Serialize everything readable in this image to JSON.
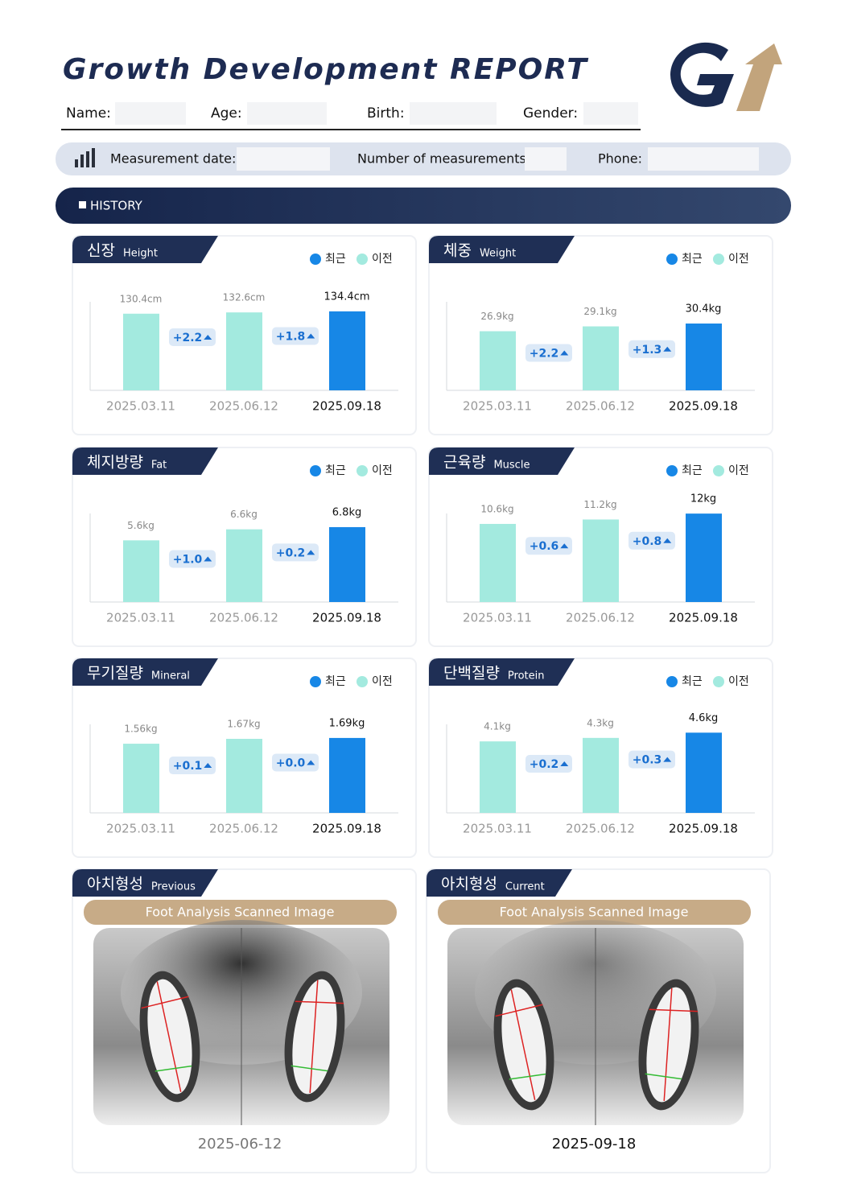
{
  "header": {
    "title": "Growth Development REPORT",
    "fields": [
      "Name:",
      "Age:",
      "Birth:",
      "Gender:"
    ]
  },
  "info_bar": {
    "fields": [
      "Measurement date:",
      "Number of measurements:",
      "Phone:"
    ]
  },
  "section": {
    "title": "HISTORY"
  },
  "chart_data": [
    {
      "type": "bar",
      "title": "신장",
      "subtitle": "Height",
      "categories": [
        "2025.03.11",
        "2025.06.12",
        "2025.09.18"
      ],
      "series": [
        {
          "name": "최근",
          "color": "#1787e6",
          "values": [
            null,
            null,
            134.4
          ],
          "value_labels": [
            null,
            null,
            "134.4cm"
          ]
        },
        {
          "name": "이전",
          "color": "#a3eadf",
          "values": [
            130.4,
            132.6,
            null
          ],
          "value_labels": [
            "130.4cm",
            "132.6cm",
            null
          ]
        }
      ],
      "annotations": [
        "+2.2",
        "+1.8"
      ],
      "ylim": [
        0,
        178
      ]
    },
    {
      "type": "bar",
      "title": "체중",
      "subtitle": "Weight",
      "categories": [
        "2025.03.11",
        "2025.06.12",
        "2025.09.18"
      ],
      "series": [
        {
          "name": "최근",
          "color": "#1787e6",
          "values": [
            null,
            null,
            30.4
          ],
          "value_labels": [
            null,
            null,
            "30.4kg"
          ]
        },
        {
          "name": "이전",
          "color": "#a3eadf",
          "values": [
            26.9,
            29.1,
            null
          ],
          "value_labels": [
            "26.9kg",
            "29.1kg",
            null
          ]
        }
      ],
      "annotations": [
        "+2.2",
        "+1.3"
      ],
      "ylim": [
        0,
        47.6
      ]
    },
    {
      "type": "bar",
      "title": "체지방량",
      "subtitle": "Fat",
      "categories": [
        "2025.03.11",
        "2025.06.12",
        "2025.09.18"
      ],
      "series": [
        {
          "name": "최근",
          "color": "#1787e6",
          "values": [
            null,
            null,
            6.8
          ],
          "value_labels": [
            null,
            null,
            "6.8kg"
          ]
        },
        {
          "name": "이전",
          "color": "#a3eadf",
          "values": [
            5.6,
            6.6,
            null
          ],
          "value_labels": [
            "5.6kg",
            "6.6kg",
            null
          ]
        }
      ],
      "annotations": [
        "+1.0",
        "+0.2"
      ],
      "ylim": [
        0,
        9.5
      ]
    },
    {
      "type": "bar",
      "title": "근육량",
      "subtitle": "Muscle",
      "categories": [
        "2025.03.11",
        "2025.06.12",
        "2025.09.18"
      ],
      "series": [
        {
          "name": "최근",
          "color": "#1787e6",
          "values": [
            null,
            null,
            12
          ],
          "value_labels": [
            null,
            null,
            "12kg"
          ]
        },
        {
          "name": "이전",
          "color": "#a3eadf",
          "values": [
            10.6,
            11.2,
            null
          ],
          "value_labels": [
            "10.6kg",
            "11.2kg",
            null
          ]
        }
      ],
      "annotations": [
        "+0.6",
        "+0.8"
      ],
      "ylim": [
        0,
        14.2
      ]
    },
    {
      "type": "bar",
      "title": "무기질량",
      "subtitle": "Mineral",
      "categories": [
        "2025.03.11",
        "2025.06.12",
        "2025.09.18"
      ],
      "series": [
        {
          "name": "최근",
          "color": "#1787e6",
          "values": [
            null,
            null,
            1.69
          ],
          "value_labels": [
            null,
            null,
            "1.69kg"
          ]
        },
        {
          "name": "이전",
          "color": "#a3eadf",
          "values": [
            1.56,
            1.67,
            null
          ],
          "value_labels": [
            "1.56kg",
            "1.67kg",
            null
          ]
        }
      ],
      "annotations": [
        "+0.1",
        "+0.0"
      ],
      "ylim": [
        0,
        2.36
      ]
    },
    {
      "type": "bar",
      "title": "단백질량",
      "subtitle": "Protein",
      "categories": [
        "2025.03.11",
        "2025.06.12",
        "2025.09.18"
      ],
      "series": [
        {
          "name": "최근",
          "color": "#1787e6",
          "values": [
            null,
            null,
            4.6
          ],
          "value_labels": [
            null,
            null,
            "4.6kg"
          ]
        },
        {
          "name": "이전",
          "color": "#a3eadf",
          "values": [
            4.1,
            4.3,
            null
          ],
          "value_labels": [
            "4.1kg",
            "4.3kg",
            null
          ]
        }
      ],
      "annotations": [
        "+0.2",
        "+0.3"
      ],
      "ylim": [
        0,
        6.0
      ]
    }
  ],
  "foot_panels": [
    {
      "title": "아치형성",
      "subtitle": "Previous",
      "caption": "Foot Analysis Scanned Image",
      "date": "2025-06-12"
    },
    {
      "title": "아치형성",
      "subtitle": "Current",
      "caption": "Foot Analysis Scanned Image",
      "date": "2025-09-18"
    }
  ]
}
